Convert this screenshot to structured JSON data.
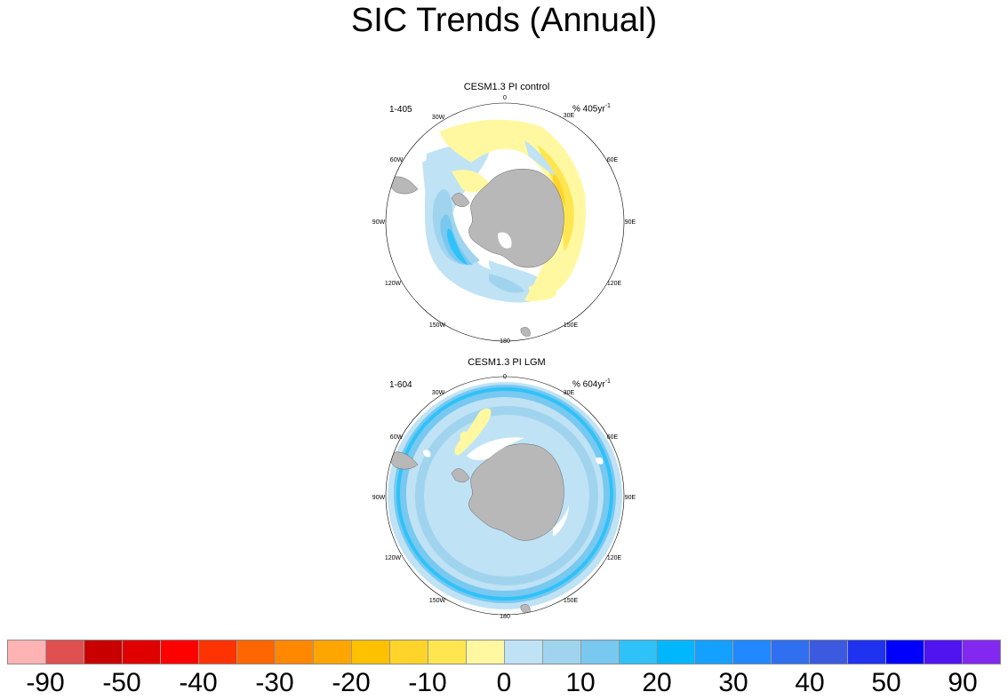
{
  "title": "SIC Trends (Annual)",
  "panels": [
    {
      "title": "CESM1.3 PI control",
      "left_string": "1-405",
      "units_prefix": "% 405yr",
      "units_exponent": "-1"
    },
    {
      "title": "CESM1.3 PI LGM",
      "left_string": "1-604",
      "units_prefix": "% 604yr",
      "units_exponent": "-1"
    }
  ],
  "longitude_labels": [
    "0",
    "30E",
    "60E",
    "90E",
    "120E",
    "150E",
    "180",
    "150W",
    "120W",
    "90W",
    "60W",
    "30W"
  ],
  "colorbar": {
    "colors": [
      "#FFB3B3",
      "#E05050",
      "#C80000",
      "#E00000",
      "#FF0000",
      "#FF3300",
      "#FF6600",
      "#FF8800",
      "#FFA500",
      "#FFC000",
      "#FFD42A",
      "#FFE650",
      "#FFF8A0",
      "#BFE2F5",
      "#A0D4EE",
      "#78C8F0",
      "#2EC2F8",
      "#00B6FF",
      "#14A0FF",
      "#2288FF",
      "#3070F0",
      "#3C5AE0",
      "#1E32F0",
      "#0000FF",
      "#5014F0",
      "#8228F0"
    ],
    "labels": [
      "-90",
      "-50",
      "-40",
      "-30",
      "-20",
      "-10",
      "0",
      "10",
      "20",
      "30",
      "40",
      "50",
      "90"
    ]
  },
  "colors": {
    "land": "#B8B8B8",
    "ocean_missing": "#FFFFFF",
    "positive_trend": "#BFE2F5",
    "negative_trend": "#FFF8A0"
  }
}
